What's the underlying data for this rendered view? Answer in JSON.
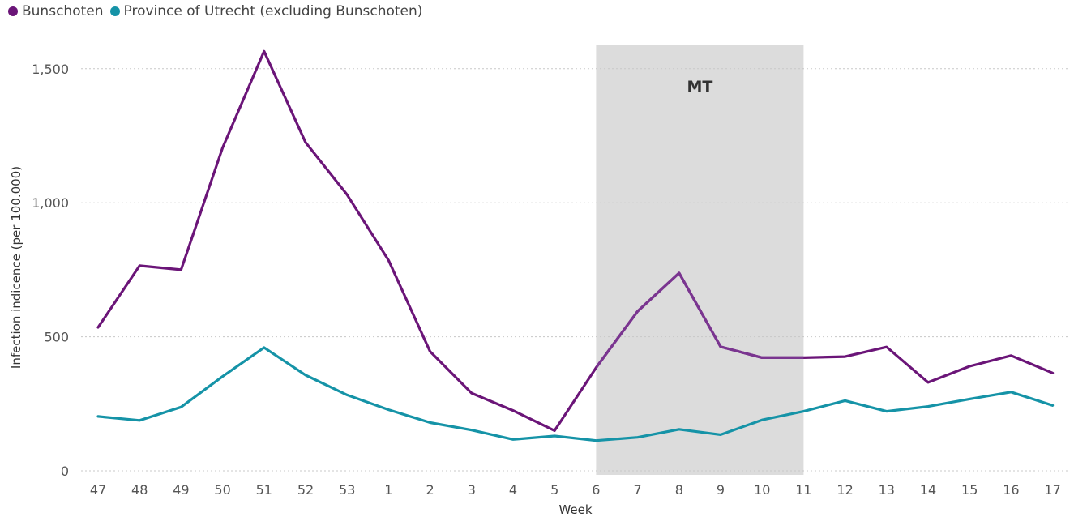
{
  "chart_data": {
    "type": "line",
    "title": "",
    "xlabel": "Week",
    "ylabel": "Infection indicence (per 100.000)",
    "categories": [
      "47",
      "48",
      "49",
      "50",
      "51",
      "52",
      "53",
      "1",
      "2",
      "3",
      "4",
      "5",
      "6",
      "7",
      "8",
      "9",
      "10",
      "11",
      "12",
      "13",
      "14",
      "15",
      "16",
      "17"
    ],
    "yticks": [
      0,
      500,
      1000,
      1500
    ],
    "ytick_labels": [
      "0",
      "500",
      "1,000",
      "1,500"
    ],
    "ylim": [
      -15,
      1590
    ],
    "grid": "horizontal dotted",
    "legend_position": "top-left",
    "series": [
      {
        "name": "Bunschoten",
        "color": "#6b1578",
        "color_in_band": "#7a3590",
        "values": [
          535,
          765,
          750,
          1205,
          1565,
          1225,
          1030,
          785,
          445,
          290,
          225,
          150,
          385,
          595,
          738,
          463,
          422,
          422,
          426,
          462,
          330,
          390,
          430,
          365
        ]
      },
      {
        "name": "Province of Utrecht (excluding Bunschoten)",
        "color": "#1593a7",
        "values": [
          203,
          188,
          238,
          352,
          460,
          357,
          283,
          228,
          180,
          152,
          117,
          130,
          113,
          125,
          155,
          135,
          190,
          222,
          262,
          222,
          240,
          268,
          294,
          244
        ]
      }
    ],
    "annotations": [
      {
        "label": "MT",
        "start_category": "6",
        "end_category": "11",
        "color": "#dcdcdc"
      }
    ]
  }
}
